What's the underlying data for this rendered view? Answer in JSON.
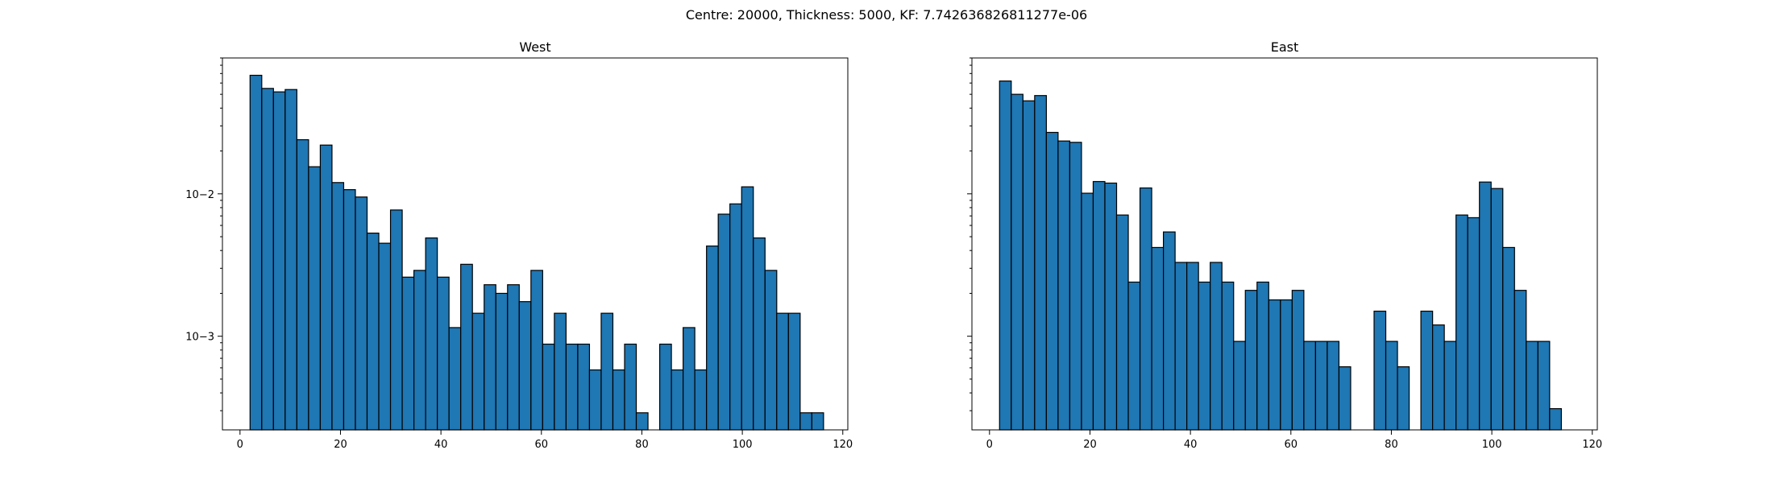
{
  "figure": {
    "suptitle": "Centre: 20000, Thickness: 5000, KF: 7.742636826811277e-06"
  },
  "chart_data": [
    {
      "type": "bar",
      "title": "West",
      "xlabel": "",
      "ylabel": "",
      "y_scale": "log",
      "xlim": [
        -3.5,
        121
      ],
      "ylim": [
        0.00022,
        0.09
      ],
      "bar_color": "#1f77b4",
      "edge_color": "#000000",
      "bin_width": 2.33,
      "x_ticks": [
        0,
        20,
        40,
        60,
        80,
        100,
        120
      ],
      "x_tick_labels": [
        "0",
        "20",
        "40",
        "60",
        "80",
        "100",
        "120"
      ],
      "y_ticks": [
        0.001,
        0.01
      ],
      "y_tick_labels": [
        "10−3",
        "10−2"
      ],
      "bin_starts": [
        2.0,
        4.33,
        6.66,
        8.99,
        11.32,
        13.65,
        15.98,
        18.31,
        20.64,
        22.97,
        25.3,
        27.63,
        29.96,
        32.29,
        34.62,
        36.95,
        39.28,
        41.61,
        43.94,
        46.27,
        48.6,
        50.93,
        53.26,
        55.59,
        57.92,
        60.25,
        62.58,
        64.91,
        67.24,
        69.57,
        71.9,
        74.23,
        76.56,
        78.89,
        81.22,
        83.55,
        85.88,
        88.21,
        90.54,
        92.87,
        95.2,
        97.53,
        99.86,
        102.19,
        104.52,
        106.85,
        109.18,
        111.51,
        113.84
      ],
      "values": [
        0.068,
        0.055,
        0.052,
        0.054,
        0.024,
        0.0155,
        0.022,
        0.012,
        0.0107,
        0.0095,
        0.0053,
        0.0045,
        0.0077,
        0.0026,
        0.0029,
        0.0049,
        0.0026,
        0.00115,
        0.0032,
        0.00145,
        0.0023,
        0.002,
        0.0023,
        0.00175,
        0.0029,
        0.00088,
        0.00145,
        0.00088,
        0.00088,
        0.00058,
        0.00145,
        0.00058,
        0.00088,
        0.00029,
        0,
        0.00088,
        0.00058,
        0.00115,
        0.00058,
        0.0043,
        0.0072,
        0.0085,
        0.0112,
        0.0049,
        0.0029,
        0.00145,
        0.00145,
        0.00029,
        0.00029
      ]
    },
    {
      "type": "bar",
      "title": "East",
      "xlabel": "",
      "ylabel": "",
      "y_scale": "log",
      "xlim": [
        -3.5,
        121
      ],
      "ylim": [
        0.00022,
        0.09
      ],
      "bar_color": "#1f77b4",
      "edge_color": "#000000",
      "bin_width": 2.33,
      "x_ticks": [
        0,
        20,
        40,
        60,
        80,
        100,
        120
      ],
      "x_tick_labels": [
        "0",
        "20",
        "40",
        "60",
        "80",
        "100",
        "120"
      ],
      "y_ticks": [
        0.001,
        0.01
      ],
      "y_tick_labels": [
        "",
        ""
      ],
      "bin_starts": [
        2.0,
        4.33,
        6.66,
        8.99,
        11.32,
        13.65,
        15.98,
        18.31,
        20.64,
        22.97,
        25.3,
        27.63,
        29.96,
        32.29,
        34.62,
        36.95,
        39.28,
        41.61,
        43.94,
        46.27,
        48.6,
        50.93,
        53.26,
        55.59,
        57.92,
        60.25,
        62.58,
        64.91,
        67.24,
        69.57,
        71.9,
        74.23,
        76.56,
        78.89,
        81.22,
        83.55,
        85.88,
        88.21,
        90.54,
        92.87,
        95.2,
        97.53,
        99.86,
        102.19,
        104.52,
        106.85,
        109.18,
        111.51
      ],
      "values": [
        0.062,
        0.05,
        0.045,
        0.049,
        0.027,
        0.0235,
        0.023,
        0.0101,
        0.0122,
        0.0119,
        0.0071,
        0.0024,
        0.011,
        0.0042,
        0.0054,
        0.0033,
        0.0033,
        0.0024,
        0.0033,
        0.0024,
        0.00092,
        0.0021,
        0.0024,
        0.0018,
        0.0018,
        0.0021,
        0.00092,
        0.00092,
        0.00092,
        0.00061,
        0,
        0,
        0.0015,
        0.00092,
        0.00061,
        0,
        0.0015,
        0.0012,
        0.00092,
        0.0071,
        0.0068,
        0.0121,
        0.0109,
        0.0042,
        0.0021,
        0.00092,
        0.00092,
        0.00031
      ]
    }
  ]
}
